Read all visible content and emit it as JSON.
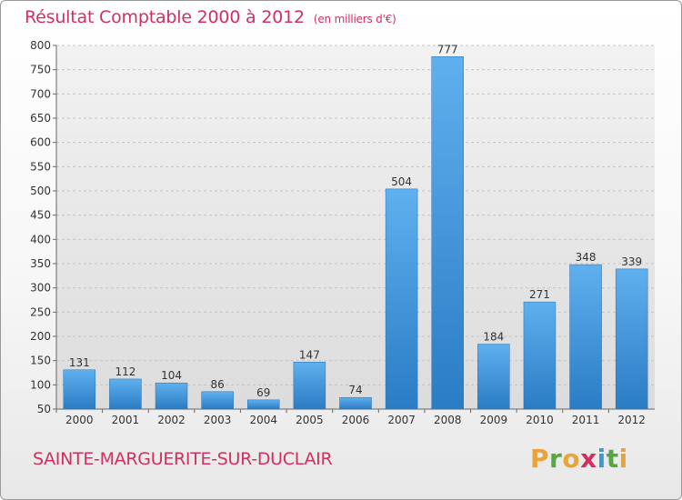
{
  "header": {
    "title": "Résultat Comptable 2000 à 2012",
    "subtitle": "(en milliers d'€)"
  },
  "place": "SAINTE-MARGUERITE-SUR-DUCLAIR",
  "logo": {
    "letters": [
      "P",
      "r",
      "o",
      "x",
      "i",
      "t",
      "i"
    ],
    "colors": [
      "#e8a33b",
      "#56a644",
      "#e8a33b",
      "#d0305f",
      "#3a9ad9",
      "#56a644",
      "#e8a33b"
    ]
  },
  "chart_data": {
    "type": "bar",
    "title": "Résultat Comptable 2000 à 2012",
    "categories": [
      "2000",
      "2001",
      "2002",
      "2003",
      "2004",
      "2005",
      "2006",
      "2007",
      "2008",
      "2009",
      "2010",
      "2011",
      "2012"
    ],
    "values": [
      131,
      112,
      104,
      86,
      69,
      147,
      74,
      504,
      777,
      184,
      271,
      348,
      339
    ],
    "ylim": [
      50,
      800
    ],
    "yticks": [
      50,
      100,
      150,
      200,
      250,
      300,
      350,
      400,
      450,
      500,
      550,
      600,
      650,
      700,
      750,
      800
    ],
    "grid": true,
    "bar_color": "#3a8fd6"
  }
}
